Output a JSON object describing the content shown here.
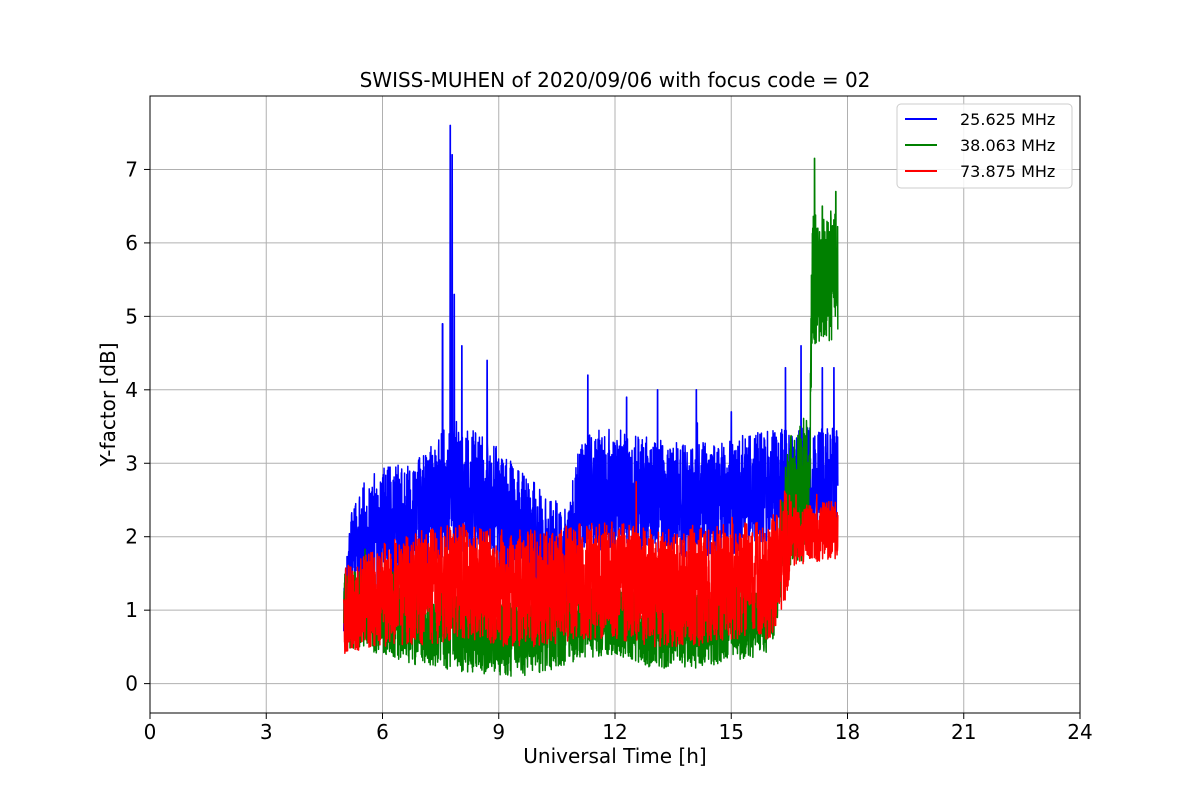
{
  "chart_data": {
    "type": "line",
    "title": "SWISS-MUHEN of 2020/09/06 with focus code = 02",
    "xlabel": "Universal Time [h]",
    "ylabel": "Y-factor [dB]",
    "xlim": [
      0,
      24
    ],
    "ylim": [
      -0.4,
      8.0
    ],
    "xticks": [
      0,
      3,
      6,
      9,
      12,
      15,
      18,
      21,
      24
    ],
    "yticks": [
      0,
      1,
      2,
      3,
      4,
      5,
      6,
      7
    ],
    "grid": true,
    "legend_position": "top-right",
    "series": [
      {
        "name": "25.625 MHz",
        "color": "#0000ff",
        "x_range": [
          5.0,
          17.75
        ],
        "base": [
          [
            5.0,
            1.0
          ],
          [
            5.2,
            1.9
          ],
          [
            6.0,
            2.1
          ],
          [
            7.0,
            2.2
          ],
          [
            7.8,
            2.7
          ],
          [
            8.5,
            2.5
          ],
          [
            9.0,
            2.3
          ],
          [
            10.0,
            1.9
          ],
          [
            10.8,
            1.6
          ],
          [
            11.1,
            2.6
          ],
          [
            12.5,
            2.6
          ],
          [
            13.5,
            2.5
          ],
          [
            14.5,
            2.5
          ],
          [
            15.5,
            2.6
          ],
          [
            16.5,
            2.7
          ],
          [
            17.75,
            2.8
          ]
        ],
        "spread": [
          [
            5.0,
            0.3
          ],
          [
            5.5,
            0.8
          ],
          [
            7.0,
            0.9
          ],
          [
            9.0,
            0.9
          ],
          [
            10.0,
            0.8
          ],
          [
            11.0,
            0.8
          ],
          [
            12.0,
            0.8
          ],
          [
            14.0,
            0.8
          ],
          [
            16.0,
            0.8
          ],
          [
            17.75,
            0.7
          ]
        ],
        "spikes": [
          [
            7.55,
            4.9
          ],
          [
            7.75,
            7.6
          ],
          [
            7.8,
            7.2
          ],
          [
            7.85,
            5.3
          ],
          [
            8.05,
            4.6
          ],
          [
            8.7,
            4.4
          ],
          [
            11.3,
            4.2
          ],
          [
            12.3,
            3.9
          ],
          [
            13.1,
            4.0
          ],
          [
            14.1,
            4.0
          ],
          [
            15.0,
            3.7
          ],
          [
            16.4,
            4.3
          ],
          [
            16.8,
            4.6
          ],
          [
            17.35,
            4.3
          ],
          [
            17.65,
            4.3
          ]
        ],
        "min_value": 0.0
      },
      {
        "name": "38.063 MHz",
        "color": "#008000",
        "x_range": [
          5.0,
          17.75
        ],
        "base": [
          [
            5.0,
            1.0
          ],
          [
            6.0,
            1.0
          ],
          [
            7.0,
            0.8
          ],
          [
            8.0,
            0.7
          ],
          [
            9.0,
            0.6
          ],
          [
            10.0,
            0.6
          ],
          [
            11.0,
            0.8
          ],
          [
            12.0,
            0.9
          ],
          [
            13.0,
            0.7
          ],
          [
            14.0,
            0.7
          ],
          [
            15.0,
            0.8
          ],
          [
            16.0,
            0.9
          ],
          [
            16.5,
            2.5
          ],
          [
            17.0,
            2.7
          ],
          [
            17.1,
            5.5
          ],
          [
            17.75,
            5.5
          ]
        ],
        "spread": [
          [
            5.0,
            0.5
          ],
          [
            6.0,
            0.6
          ],
          [
            9.0,
            0.5
          ],
          [
            12.0,
            0.5
          ],
          [
            16.0,
            0.5
          ],
          [
            16.5,
            0.9
          ],
          [
            17.05,
            1.0
          ],
          [
            17.1,
            0.9
          ],
          [
            17.75,
            0.9
          ]
        ],
        "spikes": [
          [
            17.15,
            7.15
          ],
          [
            17.7,
            6.7
          ],
          [
            17.35,
            6.5
          ]
        ],
        "min_value": 0.0
      },
      {
        "name": "73.875 MHz",
        "color": "#ff0000",
        "x_range": [
          5.0,
          17.75
        ],
        "base": [
          [
            5.0,
            1.0
          ],
          [
            6.0,
            1.2
          ],
          [
            7.0,
            1.3
          ],
          [
            8.0,
            1.4
          ],
          [
            9.0,
            1.3
          ],
          [
            10.0,
            1.3
          ],
          [
            11.0,
            1.4
          ],
          [
            12.0,
            1.4
          ],
          [
            13.0,
            1.3
          ],
          [
            14.0,
            1.3
          ],
          [
            15.0,
            1.4
          ],
          [
            16.0,
            1.4
          ],
          [
            16.5,
            2.0
          ],
          [
            17.75,
            2.1
          ]
        ],
        "spread": [
          [
            5.0,
            0.6
          ],
          [
            7.0,
            0.8
          ],
          [
            9.0,
            0.8
          ],
          [
            12.0,
            0.8
          ],
          [
            15.0,
            0.8
          ],
          [
            16.4,
            0.8
          ],
          [
            16.6,
            0.4
          ],
          [
            17.75,
            0.4
          ]
        ],
        "spikes": [],
        "min_value": 0.0
      }
    ]
  }
}
